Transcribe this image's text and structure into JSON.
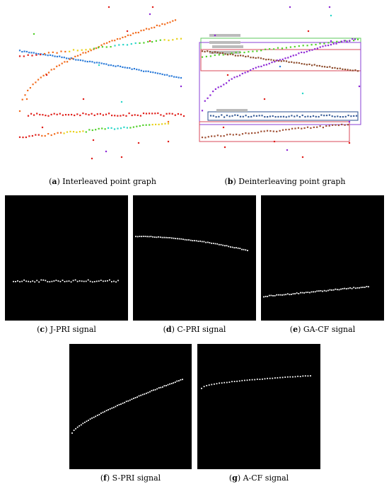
{
  "captions": {
    "a": {
      "letter": "a",
      "text": " Interleaved point graph"
    },
    "b": {
      "letter": "b",
      "text": " Deinterleaving point graph"
    },
    "c": {
      "letter": "c",
      "text": " J-PRI signal"
    },
    "d": {
      "letter": "d",
      "text": " C-PRI signal"
    },
    "e": {
      "letter": "e",
      "text": " GA-CF signal"
    },
    "f": {
      "letter": "f",
      "text": " S-PRI signal"
    },
    "g": {
      "letter": "g",
      "text": " A-CF signal"
    }
  },
  "colors": {
    "panel_bg": "#000000",
    "dot_white": "#ffffff",
    "blue": "#2b7bd9",
    "orange": "#f26b1d",
    "red": "#e0201b",
    "green": "#52d12a",
    "yellow": "#e8d21c",
    "purple": "#8e2ad6",
    "brown": "#8c4a2a",
    "box_green": "#5cc95c",
    "box_purple": "#8a3fd6",
    "box_red": "#d94a5a",
    "box_blue": "#2a4f8f"
  }
}
